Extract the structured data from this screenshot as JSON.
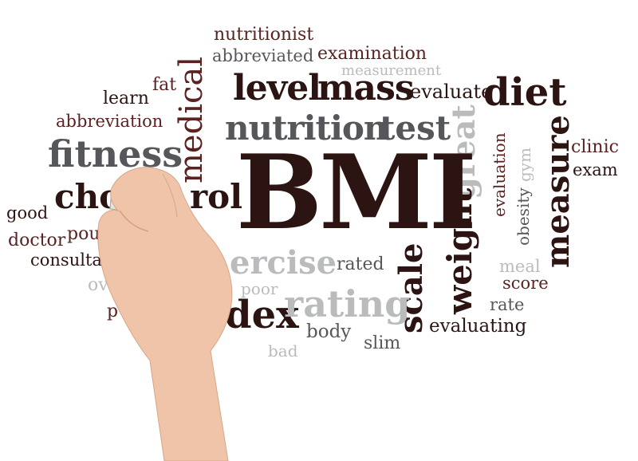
{
  "words": {
    "nutritionist": "nutritionist",
    "abbreviated": "abbreviated",
    "examination": "examination",
    "measurement": "measurement",
    "medical": "medical",
    "fat": "fat",
    "learn": "learn",
    "level": "level",
    "mass": "mass",
    "evaluate": "evaluate",
    "diet": "diet",
    "abbreviation": "abbreviation",
    "nutrition": "nutrition",
    "test": "test",
    "fitness": "fitness",
    "great": "great",
    "clinic": "clinic",
    "exam": "exam",
    "measure": "measure",
    "evaluation": "evaluation",
    "gym": "gym",
    "obesity": "obesity",
    "chol_left": "chol",
    "chol_right": "rol",
    "bmi": "BMI",
    "good": "good",
    "doctor": "doctor",
    "pou": "pou",
    "consulta": "consulta",
    "weight": "weight",
    "ercise": "ercise",
    "rated": "rated",
    "scale": "scale",
    "meal": "meal",
    "score": "score",
    "poor": "poor",
    "ov": "ov",
    "dex": "dex",
    "rating": "rating",
    "rate": "rate",
    "p": "p",
    "body": "body",
    "evaluating": "evaluating",
    "bad": "bad",
    "slim": "slim"
  },
  "colors": {
    "dark": "#2b1412",
    "maroon": "#5a2220",
    "gray": "#55575a",
    "light_gray": "#b9bbbd",
    "marker_cap": "#d8352a",
    "skin": "#efc4a8"
  }
}
